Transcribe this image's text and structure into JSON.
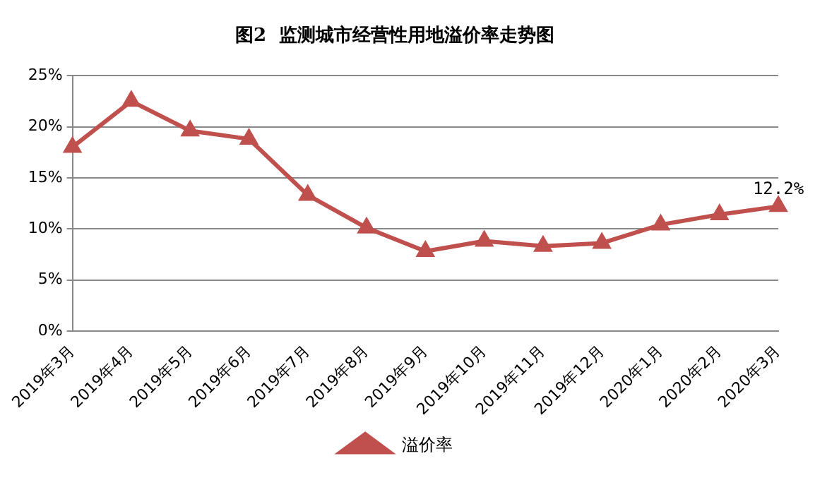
{
  "chart_data": {
    "type": "line",
    "title": "图2  监测城市经营性用地溢价率走势图",
    "categories": [
      "2019年3月",
      "2019年4月",
      "2019年5月",
      "2019年6月",
      "2019年7月",
      "2019年8月",
      "2019年9月",
      "2019年10月",
      "2019年11月",
      "2019年12月",
      "2020年1月",
      "2020年2月",
      "2020年3月"
    ],
    "series": [
      {
        "name": "溢价率",
        "color": "#c0504d",
        "values": [
          18.0,
          22.5,
          19.6,
          18.8,
          13.3,
          10.1,
          7.8,
          8.8,
          8.3,
          8.6,
          10.4,
          11.4,
          12.2
        ],
        "value_labels": [
          null,
          null,
          null,
          null,
          null,
          null,
          null,
          null,
          null,
          null,
          null,
          null,
          "12.2%"
        ]
      }
    ],
    "ylim": [
      0,
      25
    ],
    "yticks": [
      {
        "value": 0,
        "label": "0%"
      },
      {
        "value": 5,
        "label": "5%"
      },
      {
        "value": 10,
        "label": "10%"
      },
      {
        "value": 15,
        "label": "15%"
      },
      {
        "value": 20,
        "label": "20%"
      },
      {
        "value": 25,
        "label": "25%"
      }
    ],
    "grid": "y",
    "legend": "bottom",
    "marker": "triangle",
    "line_style": "solid"
  }
}
